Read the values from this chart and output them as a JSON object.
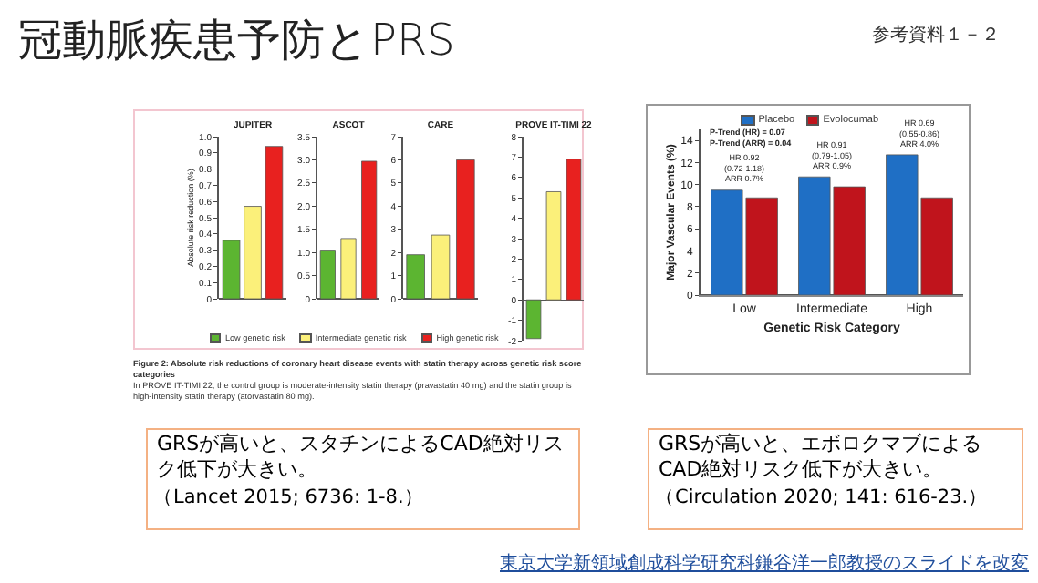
{
  "chart_data": [
    {
      "type": "bar",
      "title": "JUPITER",
      "ylabel": "Absolute risk reduction (%)",
      "categories": [
        null
      ],
      "legend": "bottom",
      "tick_labels": "y",
      "series": [
        {
          "name": "Low genetic risk",
          "color": "#5cb531",
          "values": [
            0.36
          ]
        },
        {
          "name": "Intermediate genetic risk",
          "color": "#fbf07a",
          "values": [
            0.57
          ]
        },
        {
          "name": "High genetic risk",
          "color": "#e8211f",
          "values": [
            0.94
          ]
        }
      ],
      "ylim": [
        0,
        1
      ],
      "yticks": [
        0,
        0.1,
        0.2,
        0.3,
        0.4,
        0.5,
        0.6,
        0.7,
        0.8,
        0.9,
        {
          "value": 1,
          "label": "1.0"
        }
      ],
      "annotations": [
        "Figure 2: Absolute risk reductions of coronary heart disease events with statin therapy across genetic risk score categories",
        "In PROVE IT-TIMI 22, the control group is moderate-intensity statin therapy (pravastatin 40 mg) and the statin group is high-intensity statin therapy (atorvastatin 80 mg)."
      ]
    },
    {
      "type": "bar",
      "title": "ASCOT",
      "categories": [
        null,
        null,
        null
      ],
      "tick_labels": "y",
      "values": [
        1.05,
        1.3,
        2.97
      ],
      "colors": [
        "#5cb531",
        "#fbf07a",
        "#e8211f"
      ],
      "ylim": [
        0,
        3.5
      ],
      "yticks": [
        0,
        0.5,
        {
          "value": 1,
          "label": "1.0"
        },
        1.5,
        {
          "value": 2,
          "label": "2.0"
        },
        2.5,
        {
          "value": 3,
          "label": "3.0"
        },
        3.5
      ]
    },
    {
      "type": "bar",
      "title": "CARE",
      "categories": [
        null,
        null,
        null
      ],
      "tick_labels": "y",
      "values": [
        1.9,
        2.75,
        6.0
      ],
      "colors": [
        "#5cb531",
        "#fbf07a",
        "#e8211f"
      ],
      "ylim": [
        0,
        7
      ],
      "yticks": [
        0,
        1,
        2,
        3,
        4,
        5,
        6,
        7
      ]
    },
    {
      "type": "bar",
      "title": "PROVE IT-TIMI 22",
      "categories": [
        null,
        null,
        null
      ],
      "tick_labels": "y",
      "values": [
        -1.9,
        5.3,
        6.9
      ],
      "colors": [
        "#5cb531",
        "#fbf07a",
        "#e8211f"
      ],
      "ylim": [
        -2,
        8
      ],
      "yticks": [
        -2,
        -1,
        0,
        1,
        2,
        3,
        4,
        5,
        6,
        7,
        8
      ]
    },
    {
      "type": "bar",
      "xlabel": "Genetic Risk Category",
      "ylabel": "Major Vascular Events (%)",
      "categories": [
        "Low",
        "Intermediate",
        "High"
      ],
      "legend": "top",
      "series": [
        {
          "name": "Placebo",
          "color": "#1f6fc5",
          "values": [
            9.5,
            10.7,
            12.7
          ]
        },
        {
          "name": "Evolocumab",
          "color": "#c0141c",
          "values": [
            8.8,
            9.8,
            8.8
          ]
        }
      ],
      "ylim": [
        0,
        15
      ],
      "yticks": [
        0,
        2,
        4,
        6,
        8,
        10,
        12,
        14
      ],
      "annotations": [
        "P-Trend (HR) = 0.07\nP-Trend (ARR) = 0.04",
        {
          "text": "HR 0.92\n(0.72-1.18)\nARR 0.7%",
          "x": "Low",
          "y": 9.5
        },
        {
          "text": "HR 0.91\n(0.79-1.05)\nARR 0.9%",
          "x": "Intermediate",
          "y": 10.7
        },
        {
          "text": "HR 0.69\n(0.55-0.86)\nARR 4.0%",
          "x": "High",
          "y": 12.7
        }
      ]
    },
    {
      "type": "other",
      "title": "冠動脈疾患予防とPRS",
      "annotations": [
        "参考資料１－２",
        "GRSが高いと、スタチンによるCAD絶対リスク低下が大きい。",
        "（Lancet 2015; 6736: 1-8.）",
        "GRSが高いと、エボロクマブによるCAD絶対リスク低下が大きい。",
        "（Circulation 2020; 141: 616-23.）",
        "東京大学新領域創成科学研究科鎌谷洋一郎教授のスライドを改変"
      ]
    }
  ]
}
